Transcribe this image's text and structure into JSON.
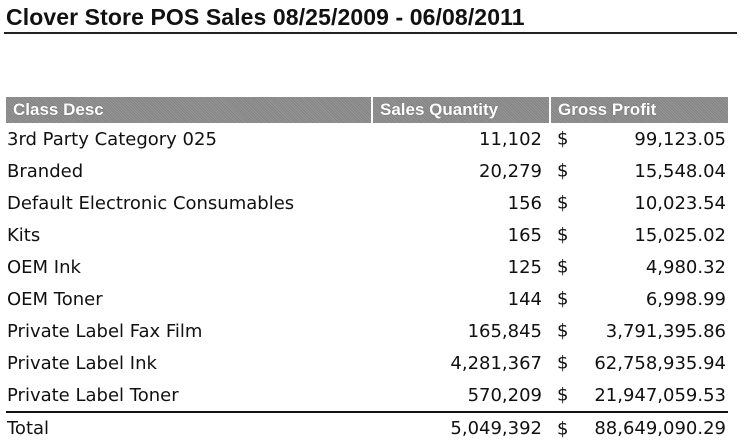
{
  "report": {
    "title": "Clover Store POS Sales 08/25/2009 - 06/08/2011",
    "columns": [
      "Class Desc",
      "Sales Quantity",
      "Gross Profit"
    ],
    "currency_symbol": "$",
    "rows": [
      {
        "desc": "3rd Party Category 025",
        "qty": "11,102",
        "profit": "99,123.05"
      },
      {
        "desc": "Branded",
        "qty": "20,279",
        "profit": "15,548.04"
      },
      {
        "desc": "Default Electronic Consumables",
        "qty": "156",
        "profit": "10,023.54"
      },
      {
        "desc": "Kits",
        "qty": "165",
        "profit": "15,025.02"
      },
      {
        "desc": "OEM Ink",
        "qty": "125",
        "profit": "4,980.32"
      },
      {
        "desc": "OEM Toner",
        "qty": "144",
        "profit": "6,998.99"
      },
      {
        "desc": "Private Label Fax Film",
        "qty": "165,845",
        "profit": "3,791,395.86"
      },
      {
        "desc": "Private Label Ink",
        "qty": "4,281,367",
        "profit": "62,758,935.94"
      },
      {
        "desc": "Private Label Toner",
        "qty": "570,209",
        "profit": "21,947,059.53"
      }
    ],
    "total": {
      "desc": "Total",
      "qty": "5,049,392",
      "profit": "88,649,090.29"
    },
    "colors": {
      "header_bg": "#8c8c8c",
      "header_text": "#ffffff",
      "text": "#111111"
    }
  }
}
